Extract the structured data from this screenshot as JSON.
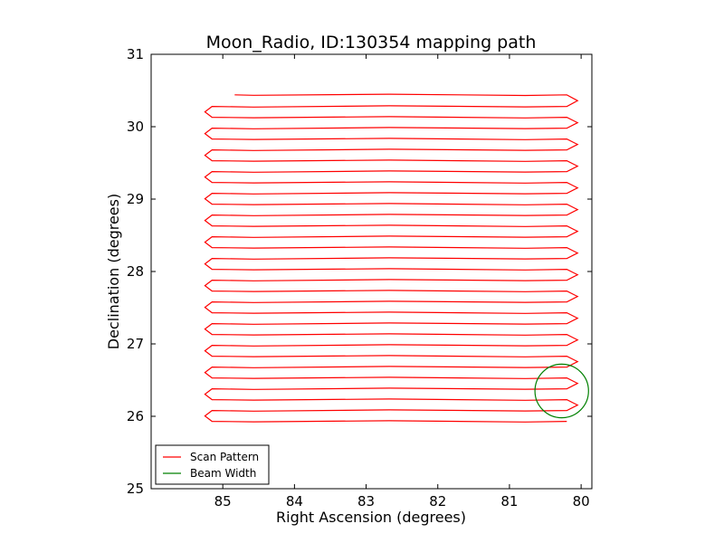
{
  "chart_data": {
    "type": "line",
    "title": "Moon_Radio, ID:130354 mapping path",
    "xlabel": "Right Ascension (degrees)",
    "ylabel": "Declination (degrees)",
    "xlim": [
      86.0,
      79.85
    ],
    "ylim": [
      25,
      31
    ],
    "x_inverted": true,
    "grid": false,
    "legend_position": "lower-left",
    "x_ticks": [
      85,
      84,
      83,
      82,
      81,
      80
    ],
    "y_ticks": [
      25,
      26,
      27,
      28,
      29,
      30,
      31
    ],
    "series": [
      {
        "name": "Scan Pattern",
        "color": "#ff0000",
        "kind": "path",
        "left_ra": 85.15,
        "right_ra": 80.2,
        "turn_ra_right": 80.05,
        "turn_ra_left": 85.25,
        "scan_dec": [
          30.44,
          30.28,
          30.13,
          29.98,
          29.83,
          29.68,
          29.53,
          29.38,
          29.23,
          29.08,
          28.93,
          28.78,
          28.63,
          28.48,
          28.33,
          28.18,
          28.03,
          27.88,
          27.73,
          27.58,
          27.43,
          27.28,
          27.13,
          26.98,
          26.83,
          26.68,
          26.53,
          26.38,
          26.23,
          26.08,
          25.93
        ]
      },
      {
        "name": "Beam Width",
        "color": "#008000",
        "kind": "circle",
        "center": [
          80.27,
          26.35
        ],
        "radius_deg": 0.37
      }
    ]
  }
}
